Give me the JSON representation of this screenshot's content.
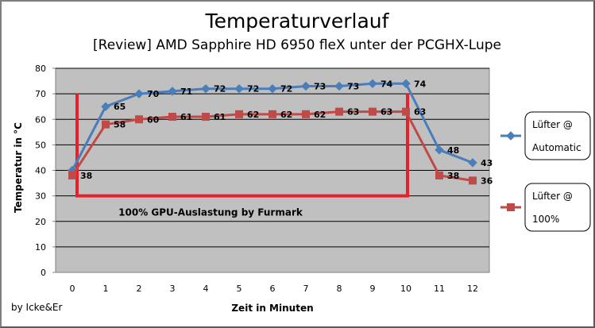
{
  "chart_data": {
    "type": "line",
    "title": "Temperaturverlauf",
    "subtitle": "[Review] AMD Sapphire HD 6950 fleX unter der PCGHX-Lupe",
    "xlabel": "Zeit in Minuten",
    "ylabel": "Temperatur in °C",
    "x": [
      0,
      1,
      2,
      3,
      4,
      5,
      6,
      7,
      8,
      9,
      10,
      11,
      12
    ],
    "xlim": [
      0,
      12
    ],
    "ylim": [
      0,
      80
    ],
    "yticks": [
      0,
      10,
      20,
      30,
      40,
      50,
      60,
      70,
      80
    ],
    "grid": "horizontal",
    "legend_position": "right",
    "series": [
      {
        "name": "Lüfter @ Automatic",
        "legend_lines": [
          "Lüfter @",
          "Automatic"
        ],
        "color": "#4a7ebb",
        "marker": "diamond",
        "values": [
          40,
          65,
          70,
          71,
          72,
          72,
          72,
          73,
          73,
          74,
          74,
          48,
          43
        ],
        "labels": [
          "",
          "65",
          "70",
          "71",
          "72",
          "72",
          "72",
          "73",
          "73",
          "74",
          "74",
          "48",
          "43"
        ]
      },
      {
        "name": "Lüfter @ 100%",
        "legend_lines": [
          "Lüfter @",
          "100%"
        ],
        "color": "#be4b48",
        "marker": "square",
        "values": [
          38,
          58,
          60,
          61,
          61,
          62,
          62,
          62,
          63,
          63,
          63,
          38,
          36
        ],
        "labels": [
          "38",
          "58",
          "60",
          "61",
          "61",
          "62",
          "62",
          "62",
          "63",
          "63",
          "63",
          "38",
          "36"
        ]
      }
    ],
    "annotation": {
      "text": "100% GPU-Auslastung by Furmark",
      "x_range": [
        0,
        10
      ],
      "y_range": [
        30,
        70
      ],
      "color": "#e8202a"
    },
    "plot_background": "#c0c0c0"
  },
  "credit": "by Icke&Er"
}
